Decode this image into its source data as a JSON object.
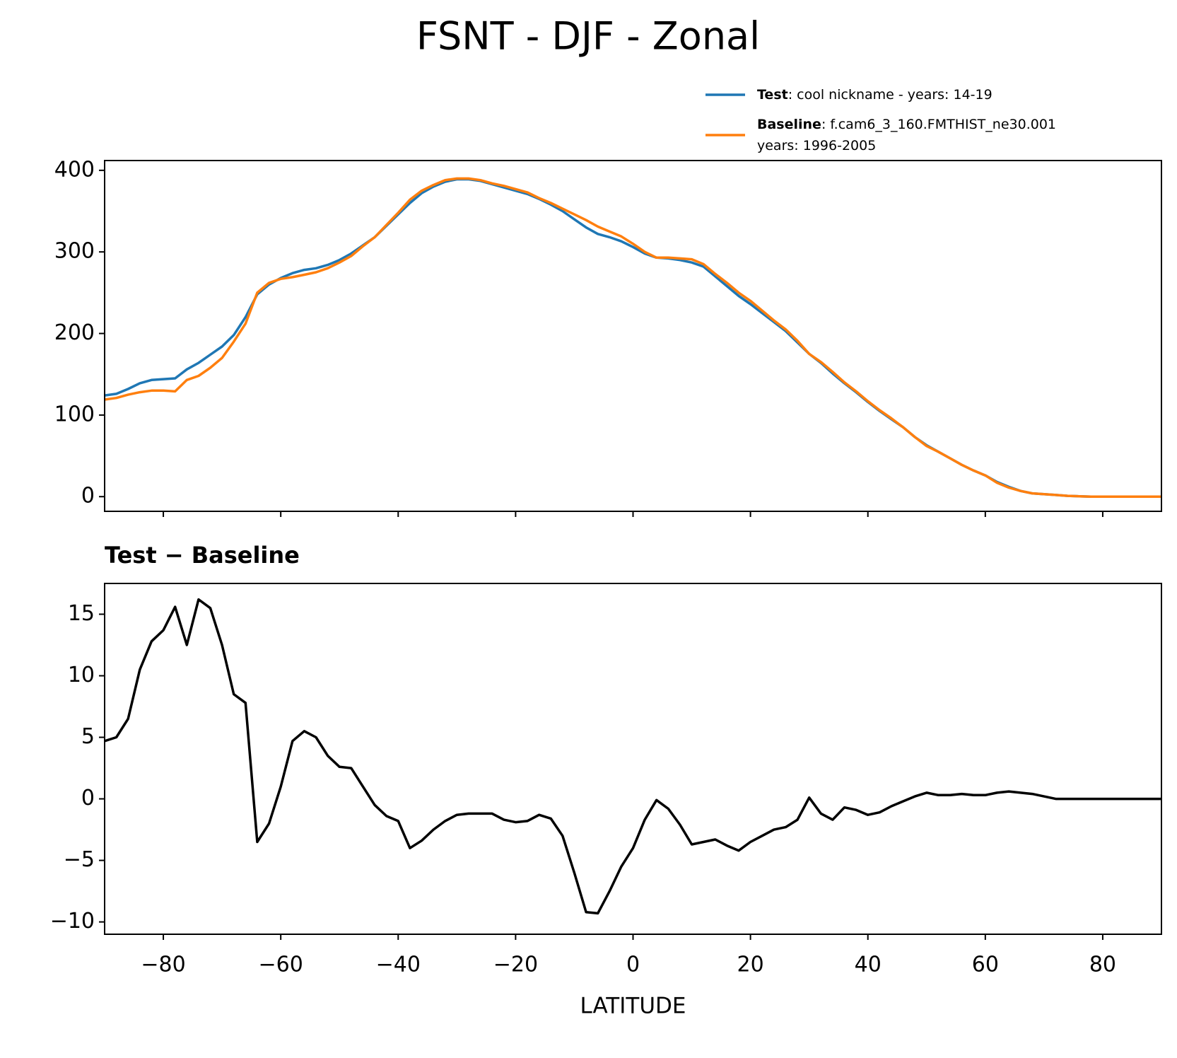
{
  "title": "FSNT - DJF - Zonal",
  "chart_data": [
    {
      "type": "line",
      "legend": "above",
      "show_xtick_labels": false,
      "x": [
        -90,
        -88,
        -86,
        -84,
        -82,
        -80,
        -78,
        -76,
        -74,
        -72,
        -70,
        -68,
        -66,
        -64,
        -62,
        -60,
        -58,
        -56,
        -54,
        -52,
        -50,
        -48,
        -46,
        -44,
        -42,
        -40,
        -38,
        -36,
        -34,
        -32,
        -30,
        -28,
        -26,
        -24,
        -22,
        -20,
        -18,
        -16,
        -14,
        -12,
        -10,
        -8,
        -6,
        -4,
        -2,
        0,
        2,
        4,
        6,
        8,
        10,
        12,
        14,
        16,
        18,
        20,
        22,
        24,
        26,
        28,
        30,
        32,
        34,
        36,
        38,
        40,
        42,
        44,
        46,
        48,
        50,
        52,
        54,
        56,
        58,
        60,
        62,
        64,
        66,
        68,
        70,
        72,
        74,
        76,
        78,
        80,
        82,
        84,
        86,
        88,
        90
      ],
      "series": [
        {
          "name": "Test",
          "legend_text": [
            ": cool nickname - years: 14-19"
          ],
          "color": "#1f77b4",
          "values": [
            124,
            126,
            132,
            139,
            143,
            144,
            145,
            156,
            164,
            174,
            184,
            198,
            220,
            248,
            260,
            268,
            274,
            278,
            280,
            284,
            290,
            298,
            308,
            318,
            332,
            346,
            360,
            372,
            380,
            386,
            389,
            389,
            387,
            383,
            379,
            375,
            371,
            365,
            358,
            350,
            340,
            330,
            322,
            318,
            313,
            306,
            298,
            293,
            292,
            290,
            287,
            282,
            270,
            258,
            246,
            236,
            225,
            214,
            203,
            189,
            175,
            164,
            151,
            139,
            128,
            116,
            105,
            95,
            85,
            73,
            63,
            55,
            47,
            39,
            32,
            26,
            18,
            12,
            7,
            4,
            3,
            2,
            1,
            0.5,
            0,
            0,
            0,
            0,
            0,
            0,
            0
          ]
        },
        {
          "name": "Baseline",
          "legend_text": [
            ": f.cam6_3_160.FMTHIST_ne30.001",
            "years: 1996-2005"
          ],
          "color": "#ff7f0e",
          "values": [
            119,
            121,
            125,
            128,
            130,
            130,
            129,
            143,
            148,
            158,
            170,
            190,
            212,
            250,
            262,
            267,
            269,
            272,
            275,
            280,
            287,
            295,
            307,
            318,
            333,
            348,
            364,
            375,
            382,
            388,
            390,
            390,
            388,
            384,
            381,
            377,
            373,
            366,
            360,
            353,
            346,
            339,
            331,
            325,
            319,
            310,
            300,
            293,
            293,
            292,
            291,
            285,
            273,
            262,
            250,
            240,
            228,
            216,
            205,
            191,
            175,
            165,
            153,
            140,
            129,
            117,
            106,
            96,
            85,
            73,
            62,
            55,
            47,
            39,
            32,
            26,
            17,
            11,
            7,
            4,
            3,
            2,
            1,
            0.5,
            0,
            0,
            0,
            0,
            0,
            0,
            0
          ]
        }
      ],
      "xlim": [
        -90,
        90
      ],
      "xticks": [
        -80,
        -60,
        -40,
        -20,
        0,
        20,
        40,
        60,
        80
      ],
      "ylim": [
        -18,
        412
      ],
      "yticks": [
        0,
        100,
        200,
        300,
        400
      ]
    },
    {
      "type": "line",
      "title": "Test − Baseline",
      "xlabel": "LATITUDE",
      "x": [
        -90,
        -88,
        -86,
        -84,
        -82,
        -80,
        -78,
        -76,
        -74,
        -72,
        -70,
        -68,
        -66,
        -64,
        -62,
        -60,
        -58,
        -56,
        -54,
        -52,
        -50,
        -48,
        -46,
        -44,
        -42,
        -40,
        -38,
        -36,
        -34,
        -32,
        -30,
        -28,
        -26,
        -24,
        -22,
        -20,
        -18,
        -16,
        -14,
        -12,
        -10,
        -8,
        -6,
        -4,
        -2,
        0,
        2,
        4,
        6,
        8,
        10,
        12,
        14,
        16,
        18,
        20,
        22,
        24,
        26,
        28,
        30,
        32,
        34,
        36,
        38,
        40,
        42,
        44,
        46,
        48,
        50,
        52,
        54,
        56,
        58,
        60,
        62,
        64,
        66,
        68,
        70,
        72,
        74,
        76,
        78,
        80,
        82,
        84,
        86,
        88,
        90
      ],
      "series": [
        {
          "color": "#000000",
          "values": [
            4.7,
            5.0,
            6.5,
            10.5,
            12.8,
            13.7,
            15.6,
            12.5,
            16.2,
            15.5,
            12.5,
            8.5,
            7.8,
            -3.5,
            -2.0,
            1.0,
            4.7,
            5.5,
            5.0,
            3.5,
            2.6,
            2.5,
            1.0,
            -0.5,
            -1.4,
            -1.8,
            -4.0,
            -3.4,
            -2.5,
            -1.8,
            -1.3,
            -1.2,
            -1.2,
            -1.2,
            -1.7,
            -1.9,
            -1.8,
            -1.3,
            -1.6,
            -3.0,
            -6.0,
            -9.2,
            -9.3,
            -7.5,
            -5.5,
            -4.0,
            -1.7,
            -0.1,
            -0.8,
            -2.1,
            -3.7,
            -3.5,
            -3.3,
            -3.8,
            -4.2,
            -3.5,
            -3.0,
            -2.5,
            -2.3,
            -1.7,
            0.1,
            -1.2,
            -1.7,
            -0.7,
            -0.9,
            -1.3,
            -1.1,
            -0.6,
            -0.2,
            0.2,
            0.5,
            0.3,
            0.3,
            0.4,
            0.3,
            0.3,
            0.5,
            0.6,
            0.5,
            0.4,
            0.2,
            0,
            0,
            0,
            0,
            0,
            0,
            0,
            0,
            0,
            0
          ]
        }
      ],
      "xlim": [
        -90,
        90
      ],
      "xticks": [
        {
          "value": -80,
          "label": "−80"
        },
        {
          "value": -60,
          "label": "−60"
        },
        {
          "value": -40,
          "label": "−40"
        },
        {
          "value": -20,
          "label": "−20"
        },
        0,
        20,
        40,
        60,
        80
      ],
      "ylim": [
        -11,
        17.5
      ],
      "yticks": [
        {
          "value": -10,
          "label": "−10"
        },
        {
          "value": -5,
          "label": "−5"
        },
        0,
        5,
        10,
        15
      ]
    }
  ]
}
